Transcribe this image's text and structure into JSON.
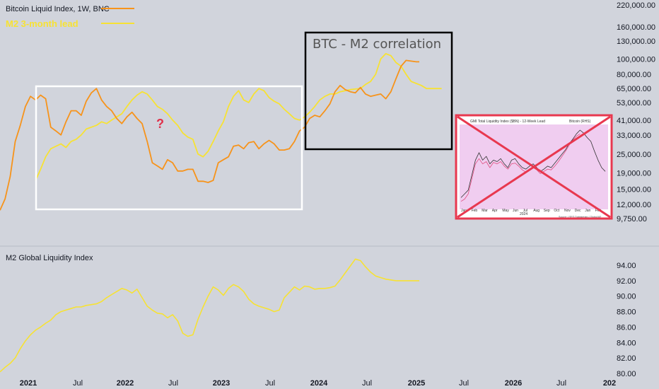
{
  "legend": {
    "series1": "Bitcoin Liquid Index, 1W, BNC",
    "series2": "M2 3-month lead"
  },
  "annotations": {
    "correlation_title": "BTC - M2 correlation",
    "question_mark": "?",
    "lower_pane_title": "M2 Global Liquidity Index"
  },
  "inset": {
    "title": "GMI Total Liquidity Index ($BN) - 12-Week Lead",
    "legend_btc": "Bitcoin (RHS)",
    "months": [
      "Jan",
      "Feb",
      "Mar",
      "Apr",
      "May",
      "Jun",
      "Jul",
      "Aug",
      "Sep",
      "Oct",
      "Nov",
      "Dec",
      "Jan",
      "Feb"
    ],
    "year_label": "2024",
    "source": "Source: LSEG Datastream / Global M2"
  },
  "colors": {
    "background": "#d1d4dc",
    "btc_line": "#f7931a",
    "m2_line": "#f7e233",
    "red_x": "#e8384f",
    "box_white": "#ffffff",
    "box_black": "#000000"
  },
  "chart_data": [
    {
      "type": "line",
      "yscale": "log",
      "y_ticks": [
        "220,000.00",
        "160,000.00",
        "130,000.00",
        "100,000.00",
        "80,000.00",
        "65,000.00",
        "53,000.00",
        "41,000.00",
        "33,000.00",
        "25,000.00",
        "19,000.00",
        "15,000.00",
        "12,000.00",
        "9,750.00"
      ],
      "ylim": [
        9000,
        230000
      ],
      "series": [
        {
          "name": "Bitcoin Liquid Index, 1W, BNC",
          "x": [
            2020.9,
            2020.95,
            2021.0,
            2021.05,
            2021.1,
            2021.15,
            2021.2,
            2021.25,
            2021.3,
            2021.35,
            2021.4,
            2021.45,
            2021.5,
            2021.55,
            2021.6,
            2021.65,
            2021.7,
            2021.75,
            2021.8,
            2021.85,
            2021.9,
            2021.95,
            2022.0,
            2022.05,
            2022.1,
            2022.15,
            2022.2,
            2022.25,
            2022.3,
            2022.35,
            2022.4,
            2022.45,
            2022.5,
            2022.55,
            2022.6,
            2022.65,
            2022.7,
            2022.75,
            2022.8,
            2022.85,
            2022.9,
            2022.95,
            2023.0,
            2023.05,
            2023.1,
            2023.15,
            2023.2,
            2023.25,
            2023.3,
            2023.35,
            2023.4,
            2023.45,
            2023.5,
            2023.55,
            2023.6,
            2023.65,
            2023.7,
            2023.75,
            2023.8,
            2023.85,
            2023.9,
            2023.95,
            2024.0,
            2024.05,
            2024.1,
            2024.15,
            2024.2,
            2024.25,
            2024.3,
            2024.35,
            2024.4,
            2024.45,
            2024.5,
            2024.55,
            2024.6,
            2024.65,
            2024.7,
            2024.75,
            2024.8,
            2024.85,
            2024.9,
            2024.95,
            2025.0,
            2025.03
          ],
          "values": [
            11000,
            13000,
            18000,
            30000,
            38000,
            50000,
            58000,
            55000,
            59000,
            56000,
            37000,
            35000,
            33000,
            40000,
            47000,
            47000,
            44000,
            54000,
            61000,
            65000,
            55000,
            50000,
            47000,
            42000,
            39000,
            43000,
            46000,
            42000,
            39000,
            30000,
            22000,
            21000,
            20000,
            23000,
            22000,
            19500,
            19500,
            20000,
            20000,
            16800,
            16800,
            16500,
            17000,
            22000,
            23000,
            24000,
            28000,
            28500,
            27000,
            29500,
            30000,
            27000,
            29000,
            30500,
            29000,
            26500,
            26500,
            27000,
            30000,
            35000,
            37000,
            42000,
            44000,
            43000,
            47000,
            52000,
            62000,
            68000,
            64000,
            62000,
            61000,
            66000,
            60000,
            58000,
            59000,
            60000,
            56000,
            62000,
            75000,
            90000,
            98000,
            97000,
            96000,
            96000
          ]
        },
        {
          "name": "M2 3-month lead",
          "x": [
            2021.25,
            2021.3,
            2021.35,
            2021.4,
            2021.45,
            2021.5,
            2021.55,
            2021.6,
            2021.65,
            2021.7,
            2021.75,
            2021.8,
            2021.85,
            2021.9,
            2021.95,
            2022.0,
            2022.05,
            2022.1,
            2022.15,
            2022.2,
            2022.25,
            2022.3,
            2022.35,
            2022.4,
            2022.45,
            2022.5,
            2022.55,
            2022.6,
            2022.65,
            2022.7,
            2022.75,
            2022.8,
            2022.85,
            2022.9,
            2022.95,
            2023.0,
            2023.05,
            2023.1,
            2023.15,
            2023.2,
            2023.25,
            2023.3,
            2023.35,
            2023.4,
            2023.45,
            2023.5,
            2023.55,
            2023.6,
            2023.65,
            2023.7,
            2023.75,
            2023.8,
            2023.85,
            2023.9,
            2023.95,
            2024.0,
            2024.05,
            2024.1,
            2024.15,
            2024.2,
            2024.25,
            2024.3,
            2024.35,
            2024.4,
            2024.45,
            2024.5,
            2024.55,
            2024.6,
            2024.65,
            2024.7,
            2024.75,
            2024.8,
            2024.85,
            2024.9,
            2024.95,
            2025.0,
            2025.05,
            2025.1,
            2025.15,
            2025.2,
            2025.25
          ],
          "values": [
            17000,
            20000,
            24000,
            27000,
            28000,
            29000,
            27500,
            30000,
            31000,
            33000,
            36000,
            37000,
            38000,
            40000,
            39000,
            41000,
            43000,
            45000,
            50000,
            55000,
            59000,
            62000,
            60000,
            55000,
            50000,
            48000,
            45000,
            41000,
            38000,
            34000,
            32000,
            31000,
            25000,
            24000,
            26000,
            30000,
            35000,
            40000,
            50000,
            58000,
            63000,
            55000,
            53000,
            60000,
            65000,
            63000,
            57000,
            54000,
            52000,
            48000,
            45000,
            42000,
            41000,
            43000,
            46000,
            50000,
            55000,
            58000,
            60000,
            60000,
            62000,
            63000,
            64000,
            64500,
            65000,
            69000,
            72000,
            80000,
            100000,
            108000,
            105000,
            95000,
            90000,
            80000,
            72000,
            70000,
            68000,
            65000,
            65000,
            65000,
            65000
          ]
        }
      ],
      "x_labels": [
        "2021",
        "Jul",
        "2022",
        "Jul",
        "2023",
        "Jul",
        "2024",
        "Jul",
        "2025",
        "Jul",
        "2026",
        "Jul",
        "202"
      ]
    },
    {
      "type": "line",
      "title": "M2 Global Liquidity Index",
      "y_ticks": [
        "94.00",
        "92.00",
        "90.00",
        "88.00",
        "86.00",
        "84.00",
        "82.00",
        "80.00"
      ],
      "ylim": [
        79.9,
        95.4
      ],
      "series": [
        {
          "name": "M2 Global Liquidity Index",
          "x": [
            2020.9,
            2020.95,
            2021.0,
            2021.05,
            2021.1,
            2021.15,
            2021.2,
            2021.25,
            2021.3,
            2021.35,
            2021.4,
            2021.45,
            2021.5,
            2021.55,
            2021.6,
            2021.65,
            2021.7,
            2021.75,
            2021.8,
            2021.85,
            2021.9,
            2021.95,
            2022.0,
            2022.05,
            2022.1,
            2022.15,
            2022.2,
            2022.25,
            2022.3,
            2022.35,
            2022.4,
            2022.45,
            2022.5,
            2022.55,
            2022.6,
            2022.65,
            2022.7,
            2022.75,
            2022.8,
            2022.85,
            2022.9,
            2022.95,
            2023.0,
            2023.05,
            2023.1,
            2023.15,
            2023.2,
            2023.25,
            2023.3,
            2023.35,
            2023.4,
            2023.45,
            2023.5,
            2023.55,
            2023.6,
            2023.65,
            2023.7,
            2023.75,
            2023.8,
            2023.85,
            2023.9,
            2023.95,
            2024.0,
            2024.05,
            2024.1,
            2024.15,
            2024.2,
            2024.25,
            2024.3,
            2024.35,
            2024.4,
            2024.45,
            2024.5,
            2024.55,
            2024.6,
            2024.65,
            2024.7,
            2024.75,
            2024.8,
            2024.85,
            2024.9,
            2024.95,
            2025.0,
            2025.03
          ],
          "values": [
            80.2,
            80.8,
            81.3,
            82.0,
            83.2,
            84.2,
            85.0,
            85.6,
            86.0,
            86.5,
            86.9,
            87.6,
            88.0,
            88.2,
            88.4,
            88.6,
            88.6,
            88.8,
            88.9,
            89.0,
            89.3,
            89.8,
            90.2,
            90.6,
            91.0,
            90.8,
            90.4,
            90.9,
            89.8,
            88.7,
            88.2,
            87.8,
            87.7,
            87.2,
            87.6,
            86.8,
            85.2,
            84.8,
            85.0,
            87.0,
            88.6,
            90.0,
            91.2,
            90.8,
            90.1,
            91.0,
            91.5,
            91.2,
            90.6,
            89.6,
            89.0,
            88.7,
            88.5,
            88.3,
            88.0,
            88.2,
            89.8,
            90.5,
            91.2,
            90.8,
            91.3,
            91.2,
            90.9,
            91.0,
            91.0,
            91.1,
            91.3,
            92.1,
            93.0,
            93.9,
            94.8,
            94.6,
            93.8,
            93.1,
            92.6,
            92.4,
            92.2,
            92.1,
            92.0,
            92.0,
            92.0,
            92.0,
            92.0,
            92.0
          ]
        }
      ],
      "x_labels": [
        "2021",
        "Jul",
        "2022",
        "Jul",
        "2023",
        "Jul",
        "2024",
        "Jul",
        "2025",
        "Jul",
        "2026",
        "Jul",
        "202"
      ]
    },
    {
      "type": "line",
      "title": "GMI Total Liquidity Index ($BN) - 12-Week Lead",
      "series": [
        {
          "name": "GMI Total Liquidity Index ($BN) - 12-Week Lead",
          "x": [
            0,
            1,
            2,
            3,
            4,
            5,
            6,
            7,
            8,
            9,
            10,
            11,
            12,
            13,
            14,
            15,
            16,
            17,
            18,
            19,
            20,
            21,
            22,
            23,
            24,
            25,
            26,
            27,
            28,
            29,
            30,
            31,
            32,
            33,
            34,
            35,
            36,
            37,
            38,
            39,
            40
          ],
          "values": [
            0.1,
            0.15,
            0.2,
            0.4,
            0.6,
            0.7,
            0.6,
            0.65,
            0.55,
            0.6,
            0.58,
            0.62,
            0.55,
            0.5,
            0.6,
            0.62,
            0.55,
            0.5,
            0.48,
            0.52,
            0.55,
            0.5,
            0.45,
            0.48,
            0.52,
            0.5,
            0.56,
            0.62,
            0.68,
            0.74,
            0.82,
            0.88,
            0.95,
            1.0,
            0.96,
            0.9,
            0.85,
            0.72,
            0.6,
            0.5,
            0.45
          ]
        },
        {
          "name": "Bitcoin (RHS)",
          "x": [
            0,
            1,
            2,
            3,
            4,
            5,
            6,
            7,
            8,
            9,
            10,
            11,
            12,
            13,
            14,
            15,
            16,
            17,
            18,
            19,
            20,
            21,
            22,
            23,
            24,
            25,
            26,
            27,
            28,
            29,
            30,
            31,
            32,
            33
          ],
          "values": [
            0.05,
            0.08,
            0.15,
            0.35,
            0.55,
            0.62,
            0.55,
            0.58,
            0.5,
            0.57,
            0.55,
            0.58,
            0.52,
            0.48,
            0.55,
            0.56,
            0.52,
            0.47,
            0.44,
            0.48,
            0.5,
            0.47,
            0.42,
            0.45,
            0.48,
            0.47,
            0.52,
            0.58,
            0.65,
            0.72,
            0.8,
            0.87,
            0.92,
            0.95
          ]
        }
      ]
    }
  ]
}
